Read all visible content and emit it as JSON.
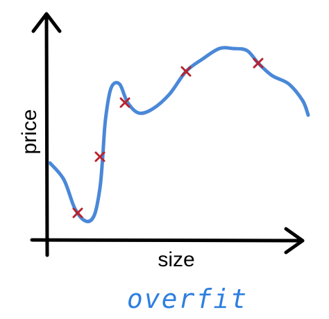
{
  "chart_data": {
    "type": "line",
    "title": "",
    "xlabel": "size",
    "ylabel": "price",
    "annotation": "overfit",
    "grid": false,
    "legend": "none",
    "xlim": [
      0,
      10
    ],
    "ylim": [
      0,
      10
    ],
    "points": {
      "marker": "x",
      "x": [
        1.1,
        1.9,
        2.8,
        5.0,
        7.6
      ],
      "y": [
        1.3,
        4.0,
        6.6,
        8.1,
        8.5
      ]
    },
    "curve": {
      "x": [
        0.1,
        0.6,
        1.0,
        1.4,
        1.7,
        1.9,
        2.0,
        2.1,
        2.3,
        2.6,
        2.9,
        3.3,
        3.8,
        4.4,
        5.0,
        5.6,
        6.2,
        6.7,
        7.2,
        7.6,
        8.1,
        8.7,
        9.2,
        9.4
      ],
      "y": [
        3.7,
        2.9,
        1.5,
        0.9,
        1.2,
        2.5,
        4.0,
        5.8,
        7.3,
        7.5,
        6.6,
        6.1,
        6.3,
        7.0,
        8.1,
        8.7,
        9.2,
        9.2,
        9.1,
        8.5,
        7.9,
        7.5,
        6.7,
        6.0
      ]
    },
    "colors": {
      "curve": "#4a88d8",
      "marker": "#b8222d",
      "axis": "#000000",
      "caption": "#2e7fe0"
    }
  }
}
